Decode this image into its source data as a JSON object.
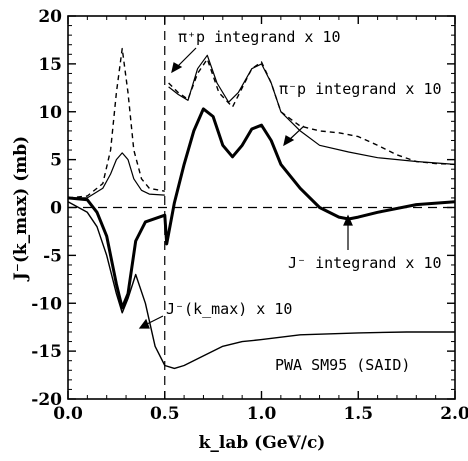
{
  "chart_data": {
    "type": "line",
    "xlabel": "k_lab (GeV/c)",
    "ylabel": "J⁻(k_max) (mb)",
    "xlim": [
      0.0,
      2.0
    ],
    "ylim": [
      -20,
      20
    ],
    "x_ticks": [
      "0.0",
      "0.5",
      "1.0",
      "1.5",
      "2.0"
    ],
    "y_ticks": [
      "-20",
      "-15",
      "-10",
      "-5",
      "0",
      "5",
      "10",
      "15",
      "20"
    ],
    "grid": false,
    "legend": "none",
    "reference_lines": [
      {
        "orientation": "horizontal",
        "value": 0,
        "style": "dashed"
      },
      {
        "orientation": "vertical",
        "value": 0.5,
        "style": "dashed"
      }
    ],
    "series": [
      {
        "style": "dashed",
        "points": [
          [
            0.0,
            1.0
          ],
          [
            0.1,
            1.2
          ],
          [
            0.18,
            2.5
          ],
          [
            0.22,
            6
          ],
          [
            0.25,
            12
          ],
          [
            0.28,
            16.6
          ],
          [
            0.31,
            12
          ],
          [
            0.34,
            6
          ],
          [
            0.38,
            3
          ],
          [
            0.42,
            2
          ],
          [
            0.5,
            1.7
          ],
          [
            0.52,
            13
          ],
          [
            0.57,
            12
          ],
          [
            0.62,
            11.3
          ],
          [
            0.67,
            14
          ],
          [
            0.72,
            15.5
          ],
          [
            0.78,
            12
          ],
          [
            0.85,
            10.5
          ],
          [
            0.9,
            12.5
          ],
          [
            0.95,
            14.5
          ],
          [
            1.0,
            15.2
          ],
          [
            1.05,
            13
          ],
          [
            1.1,
            10
          ],
          [
            1.2,
            8.5
          ],
          [
            1.3,
            8
          ],
          [
            1.4,
            7.8
          ],
          [
            1.5,
            7.4
          ],
          [
            1.6,
            6.5
          ],
          [
            1.7,
            5.5
          ],
          [
            1.8,
            4.8
          ],
          [
            1.9,
            4.6
          ],
          [
            2.0,
            4.5
          ]
        ]
      },
      {
        "style": "solid",
        "points": [
          [
            0.0,
            1.0
          ],
          [
            0.1,
            1.0
          ],
          [
            0.18,
            2
          ],
          [
            0.22,
            3.5
          ],
          [
            0.25,
            5
          ],
          [
            0.28,
            5.7
          ],
          [
            0.31,
            5
          ],
          [
            0.34,
            3
          ],
          [
            0.38,
            1.8
          ],
          [
            0.42,
            1.4
          ],
          [
            0.5,
            1.3
          ],
          [
            0.52,
            12.6
          ],
          [
            0.57,
            11.8
          ],
          [
            0.62,
            11.2
          ],
          [
            0.67,
            14.5
          ],
          [
            0.72,
            15.9
          ],
          [
            0.77,
            13
          ],
          [
            0.83,
            11
          ],
          [
            0.88,
            12
          ],
          [
            0.95,
            14.5
          ],
          [
            1.0,
            15
          ],
          [
            1.05,
            13
          ],
          [
            1.1,
            10
          ],
          [
            1.2,
            8
          ],
          [
            1.3,
            6.5
          ],
          [
            1.45,
            5.8
          ],
          [
            1.6,
            5.2
          ],
          [
            1.8,
            4.8
          ],
          [
            2.0,
            4.5
          ]
        ]
      },
      {
        "style": "solid",
        "points": [
          [
            0.0,
            1.0
          ],
          [
            0.1,
            0.8
          ],
          [
            0.15,
            -0.5
          ],
          [
            0.2,
            -3
          ],
          [
            0.25,
            -8
          ],
          [
            0.28,
            -10.5
          ],
          [
            0.31,
            -9
          ],
          [
            0.35,
            -3.5
          ],
          [
            0.4,
            -1.5
          ],
          [
            0.5,
            -0.8
          ],
          [
            0.51,
            -3.8
          ],
          [
            0.55,
            0.5
          ],
          [
            0.6,
            4.5
          ],
          [
            0.65,
            8
          ],
          [
            0.7,
            10.3
          ],
          [
            0.75,
            9.5
          ],
          [
            0.8,
            6.5
          ],
          [
            0.85,
            5.3
          ],
          [
            0.9,
            6.5
          ],
          [
            0.95,
            8.2
          ],
          [
            1.0,
            8.6
          ],
          [
            1.05,
            7
          ],
          [
            1.1,
            4.5
          ],
          [
            1.2,
            2
          ],
          [
            1.3,
            0
          ],
          [
            1.4,
            -1
          ],
          [
            1.45,
            -1.2
          ],
          [
            1.5,
            -1
          ],
          [
            1.6,
            -0.5
          ],
          [
            1.8,
            0.3
          ],
          [
            2.0,
            0.6
          ]
        ]
      },
      {
        "style": "solid",
        "points": [
          [
            0.0,
            0.6
          ],
          [
            0.1,
            -0.5
          ],
          [
            0.15,
            -2
          ],
          [
            0.2,
            -5
          ],
          [
            0.25,
            -9
          ],
          [
            0.28,
            -11
          ],
          [
            0.31,
            -9.5
          ],
          [
            0.35,
            -7
          ],
          [
            0.4,
            -10
          ],
          [
            0.45,
            -14.5
          ],
          [
            0.5,
            -16.5
          ],
          [
            0.55,
            -16.8
          ],
          [
            0.6,
            -16.5
          ],
          [
            0.7,
            -15.5
          ],
          [
            0.8,
            -14.5
          ],
          [
            0.9,
            -14
          ],
          [
            1.0,
            -13.8
          ],
          [
            1.2,
            -13.3
          ],
          [
            1.5,
            -13.1
          ],
          [
            1.75,
            -13
          ],
          [
            2.0,
            -13
          ]
        ]
      }
    ],
    "annotations": [
      "π⁺p integrand x 10",
      "π⁻p integrand x 10",
      "J⁻ integrand x 10",
      "J⁻(k_max) x 10",
      "PWA SM95 (SAID)"
    ]
  }
}
